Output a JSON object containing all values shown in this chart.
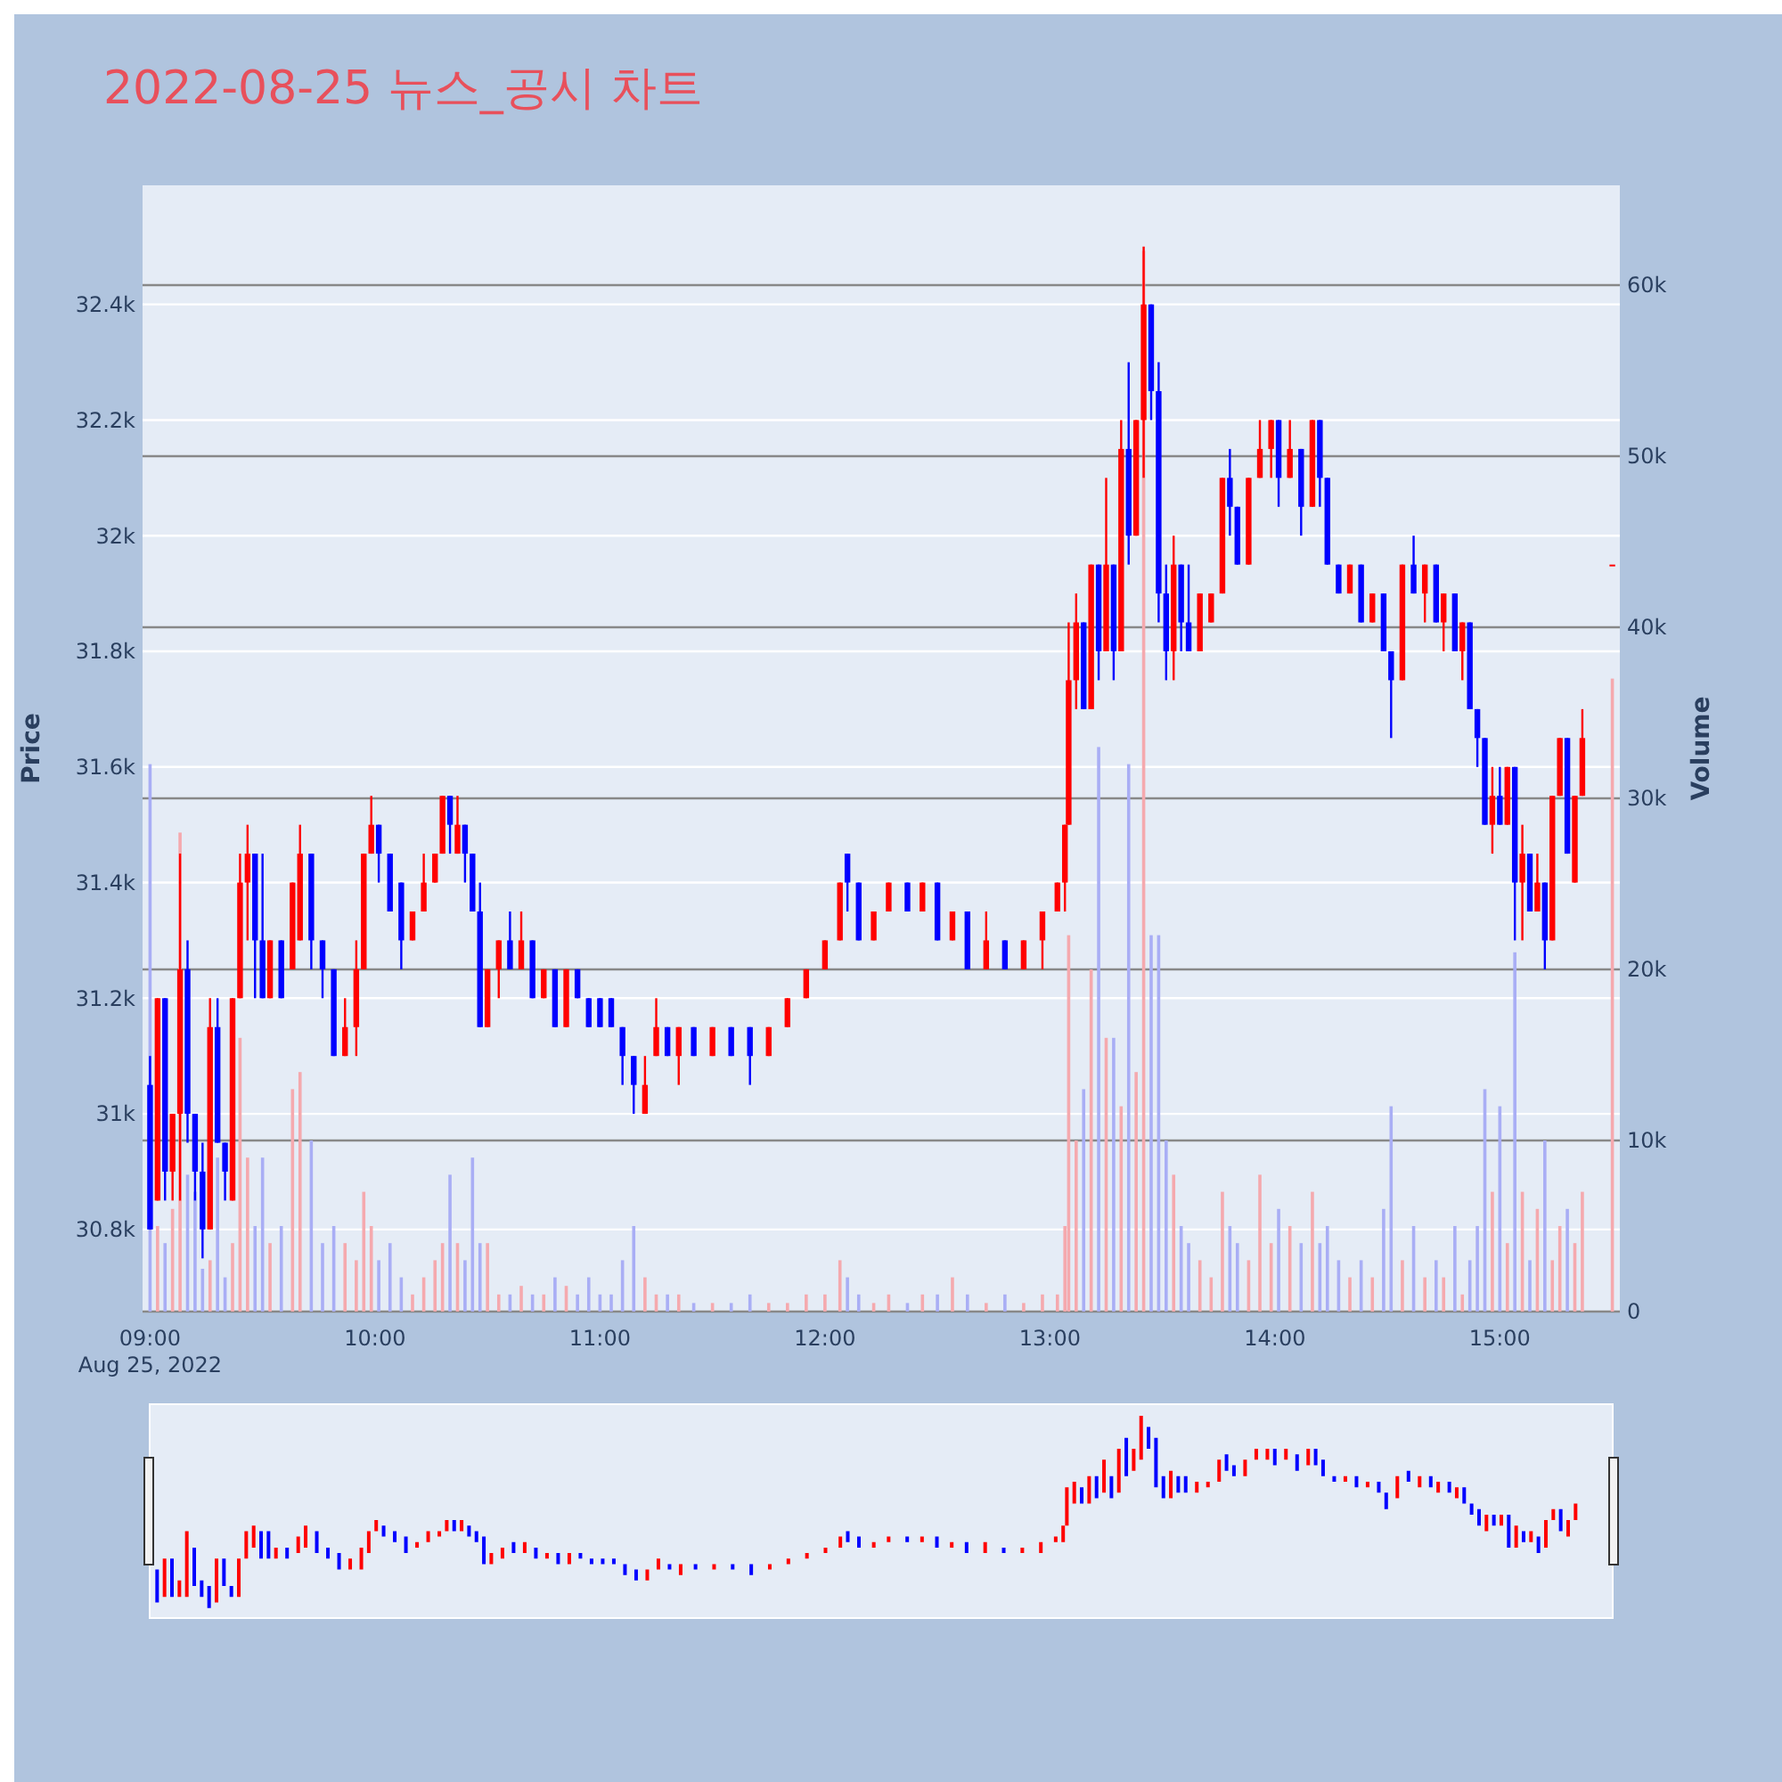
{
  "chart_data": {
    "type": "candlestick",
    "title": "2022-08-25 뉴스_공시 차트",
    "ylabel": "Price",
    "y2label": "Volume",
    "grid": "y",
    "x": [
      "2022-08-25T09:00",
      "2022-08-25T09:02",
      "2022-08-25T09:04",
      "2022-08-25T09:06",
      "2022-08-25T09:08",
      "2022-08-25T09:10",
      "2022-08-25T09:12",
      "2022-08-25T09:14",
      "2022-08-25T09:16",
      "2022-08-25T09:18",
      "2022-08-25T09:20",
      "2022-08-25T09:22",
      "2022-08-25T09:24",
      "2022-08-25T09:26",
      "2022-08-25T09:28",
      "2022-08-25T09:30",
      "2022-08-25T09:32",
      "2022-08-25T09:35",
      "2022-08-25T09:38",
      "2022-08-25T09:40",
      "2022-08-25T09:43",
      "2022-08-25T09:46",
      "2022-08-25T09:49",
      "2022-08-25T09:52",
      "2022-08-25T09:55",
      "2022-08-25T09:57",
      "2022-08-25T09:59",
      "2022-08-25T10:01",
      "2022-08-25T10:04",
      "2022-08-25T10:07",
      "2022-08-25T10:10",
      "2022-08-25T10:13",
      "2022-08-25T10:16",
      "2022-08-25T10:18",
      "2022-08-25T10:20",
      "2022-08-25T10:22",
      "2022-08-25T10:24",
      "2022-08-25T10:26",
      "2022-08-25T10:28",
      "2022-08-25T10:30",
      "2022-08-25T10:33",
      "2022-08-25T10:36",
      "2022-08-25T10:39",
      "2022-08-25T10:42",
      "2022-08-25T10:45",
      "2022-08-25T10:48",
      "2022-08-25T10:51",
      "2022-08-25T10:54",
      "2022-08-25T10:57",
      "2022-08-25T11:00",
      "2022-08-25T11:03",
      "2022-08-25T11:06",
      "2022-08-25T11:09",
      "2022-08-25T11:12",
      "2022-08-25T11:15",
      "2022-08-25T11:18",
      "2022-08-25T11:21",
      "2022-08-25T11:25",
      "2022-08-25T11:30",
      "2022-08-25T11:35",
      "2022-08-25T11:40",
      "2022-08-25T11:45",
      "2022-08-25T11:50",
      "2022-08-25T11:55",
      "2022-08-25T12:00",
      "2022-08-25T12:04",
      "2022-08-25T12:06",
      "2022-08-25T12:09",
      "2022-08-25T12:13",
      "2022-08-25T12:17",
      "2022-08-25T12:22",
      "2022-08-25T12:26",
      "2022-08-25T12:30",
      "2022-08-25T12:34",
      "2022-08-25T12:38",
      "2022-08-25T12:43",
      "2022-08-25T12:48",
      "2022-08-25T12:53",
      "2022-08-25T12:58",
      "2022-08-25T13:02",
      "2022-08-25T13:04",
      "2022-08-25T13:05",
      "2022-08-25T13:07",
      "2022-08-25T13:09",
      "2022-08-25T13:11",
      "2022-08-25T13:13",
      "2022-08-25T13:15",
      "2022-08-25T13:17",
      "2022-08-25T13:19",
      "2022-08-25T13:21",
      "2022-08-25T13:23",
      "2022-08-25T13:25",
      "2022-08-25T13:27",
      "2022-08-25T13:29",
      "2022-08-25T13:31",
      "2022-08-25T13:33",
      "2022-08-25T13:35",
      "2022-08-25T13:37",
      "2022-08-25T13:40",
      "2022-08-25T13:43",
      "2022-08-25T13:46",
      "2022-08-25T13:48",
      "2022-08-25T13:50",
      "2022-08-25T13:53",
      "2022-08-25T13:56",
      "2022-08-25T13:59",
      "2022-08-25T14:01",
      "2022-08-25T14:04",
      "2022-08-25T14:07",
      "2022-08-25T14:10",
      "2022-08-25T14:12",
      "2022-08-25T14:14",
      "2022-08-25T14:17",
      "2022-08-25T14:20",
      "2022-08-25T14:23",
      "2022-08-25T14:26",
      "2022-08-25T14:29",
      "2022-08-25T14:31",
      "2022-08-25T14:34",
      "2022-08-25T14:37",
      "2022-08-25T14:40",
      "2022-08-25T14:43",
      "2022-08-25T14:45",
      "2022-08-25T14:48",
      "2022-08-25T14:50",
      "2022-08-25T14:52",
      "2022-08-25T14:54",
      "2022-08-25T14:56",
      "2022-08-25T14:58",
      "2022-08-25T15:00",
      "2022-08-25T15:02",
      "2022-08-25T15:04",
      "2022-08-25T15:06",
      "2022-08-25T15:08",
      "2022-08-25T15:10",
      "2022-08-25T15:12",
      "2022-08-25T15:14",
      "2022-08-25T15:16",
      "2022-08-25T15:18",
      "2022-08-25T15:20",
      "2022-08-25T15:22",
      "2022-08-25T15:30"
    ],
    "ohlc": [
      [
        31050,
        31100,
        30800,
        30800
      ],
      [
        30850,
        31200,
        30850,
        31200
      ],
      [
        31200,
        31200,
        30850,
        30900
      ],
      [
        30900,
        31000,
        30850,
        31000
      ],
      [
        31000,
        31450,
        30850,
        31250
      ],
      [
        31250,
        31300,
        30950,
        31000
      ],
      [
        31000,
        31000,
        30850,
        30900
      ],
      [
        30900,
        30950,
        30750,
        30800
      ],
      [
        30800,
        31200,
        30800,
        31150
      ],
      [
        31150,
        31200,
        30950,
        30950
      ],
      [
        30950,
        30950,
        30850,
        30900
      ],
      [
        30850,
        31200,
        30850,
        31200
      ],
      [
        31200,
        31450,
        31200,
        31400
      ],
      [
        31400,
        31500,
        31300,
        31450
      ],
      [
        31450,
        31450,
        31200,
        31300
      ],
      [
        31300,
        31450,
        31200,
        31200
      ],
      [
        31200,
        31300,
        31200,
        31300
      ],
      [
        31300,
        31300,
        31200,
        31200
      ],
      [
        31250,
        31400,
        31250,
        31400
      ],
      [
        31300,
        31500,
        31300,
        31450
      ],
      [
        31450,
        31450,
        31250,
        31300
      ],
      [
        31300,
        31300,
        31200,
        31250
      ],
      [
        31250,
        31250,
        31100,
        31100
      ],
      [
        31100,
        31200,
        31100,
        31150
      ],
      [
        31150,
        31300,
        31100,
        31250
      ],
      [
        31250,
        31450,
        31250,
        31450
      ],
      [
        31450,
        31550,
        31450,
        31500
      ],
      [
        31500,
        31500,
        31400,
        31450
      ],
      [
        31450,
        31450,
        31350,
        31350
      ],
      [
        31400,
        31400,
        31250,
        31300
      ],
      [
        31300,
        31350,
        31300,
        31350
      ],
      [
        31350,
        31450,
        31350,
        31400
      ],
      [
        31400,
        31450,
        31400,
        31450
      ],
      [
        31450,
        31550,
        31450,
        31550
      ],
      [
        31550,
        31550,
        31450,
        31500
      ],
      [
        31450,
        31550,
        31450,
        31500
      ],
      [
        31500,
        31500,
        31400,
        31450
      ],
      [
        31450,
        31450,
        31350,
        31350
      ],
      [
        31350,
        31400,
        31150,
        31150
      ],
      [
        31150,
        31250,
        31150,
        31250
      ],
      [
        31250,
        31300,
        31200,
        31300
      ],
      [
        31300,
        31350,
        31250,
        31250
      ],
      [
        31250,
        31350,
        31250,
        31300
      ],
      [
        31300,
        31300,
        31200,
        31200
      ],
      [
        31200,
        31250,
        31200,
        31250
      ],
      [
        31250,
        31250,
        31150,
        31150
      ],
      [
        31150,
        31250,
        31150,
        31250
      ],
      [
        31250,
        31250,
        31200,
        31200
      ],
      [
        31200,
        31200,
        31150,
        31150
      ],
      [
        31200,
        31200,
        31150,
        31150
      ],
      [
        31200,
        31200,
        31150,
        31150
      ],
      [
        31150,
        31150,
        31050,
        31100
      ],
      [
        31100,
        31100,
        31000,
        31050
      ],
      [
        31000,
        31100,
        31000,
        31050
      ],
      [
        31100,
        31200,
        31100,
        31150
      ],
      [
        31150,
        31150,
        31100,
        31100
      ],
      [
        31100,
        31150,
        31050,
        31150
      ],
      [
        31150,
        31150,
        31100,
        31100
      ],
      [
        31100,
        31150,
        31100,
        31150
      ],
      [
        31150,
        31150,
        31100,
        31100
      ],
      [
        31150,
        31150,
        31050,
        31100
      ],
      [
        31100,
        31150,
        31100,
        31150
      ],
      [
        31150,
        31200,
        31150,
        31200
      ],
      [
        31200,
        31250,
        31200,
        31250
      ],
      [
        31250,
        31300,
        31250,
        31300
      ],
      [
        31300,
        31400,
        31300,
        31400
      ],
      [
        31450,
        31450,
        31350,
        31400
      ],
      [
        31400,
        31400,
        31300,
        31300
      ],
      [
        31300,
        31350,
        31300,
        31350
      ],
      [
        31350,
        31400,
        31350,
        31400
      ],
      [
        31400,
        31400,
        31350,
        31350
      ],
      [
        31350,
        31400,
        31350,
        31400
      ],
      [
        31400,
        31400,
        31300,
        31300
      ],
      [
        31300,
        31350,
        31300,
        31350
      ],
      [
        31350,
        31350,
        31250,
        31250
      ],
      [
        31250,
        31350,
        31250,
        31300
      ],
      [
        31300,
        31300,
        31250,
        31250
      ],
      [
        31250,
        31300,
        31250,
        31300
      ],
      [
        31300,
        31350,
        31250,
        31350
      ],
      [
        31350,
        31400,
        31350,
        31400
      ],
      [
        31400,
        31500,
        31350,
        31500
      ],
      [
        31500,
        31850,
        31500,
        31750
      ],
      [
        31750,
        31900,
        31700,
        31850
      ],
      [
        31850,
        31850,
        31700,
        31700
      ],
      [
        31700,
        31950,
        31700,
        31950
      ],
      [
        31950,
        31950,
        31750,
        31800
      ],
      [
        31800,
        32100,
        31800,
        31950
      ],
      [
        31950,
        31950,
        31750,
        31800
      ],
      [
        31800,
        32200,
        31800,
        32150
      ],
      [
        32150,
        32300,
        31950,
        32000
      ],
      [
        32000,
        32200,
        32000,
        32200
      ],
      [
        32200,
        32500,
        32100,
        32400
      ],
      [
        32400,
        32400,
        32200,
        32250
      ],
      [
        32250,
        32300,
        31850,
        31900
      ],
      [
        31900,
        31950,
        31750,
        31800
      ],
      [
        31800,
        32000,
        31750,
        31950
      ],
      [
        31950,
        31950,
        31800,
        31850
      ],
      [
        31850,
        31950,
        31800,
        31800
      ],
      [
        31800,
        31900,
        31800,
        31900
      ],
      [
        31850,
        31900,
        31850,
        31900
      ],
      [
        31900,
        32100,
        31900,
        32100
      ],
      [
        32100,
        32150,
        32000,
        32050
      ],
      [
        32050,
        32050,
        31950,
        31950
      ],
      [
        31950,
        32100,
        31950,
        32100
      ],
      [
        32100,
        32200,
        32100,
        32150
      ],
      [
        32150,
        32200,
        32100,
        32200
      ],
      [
        32200,
        32200,
        32050,
        32100
      ],
      [
        32100,
        32200,
        32100,
        32150
      ],
      [
        32150,
        32150,
        32000,
        32050
      ],
      [
        32050,
        32200,
        32050,
        32200
      ],
      [
        32200,
        32200,
        32050,
        32100
      ],
      [
        32100,
        32100,
        31950,
        31950
      ],
      [
        31950,
        31950,
        31900,
        31900
      ],
      [
        31900,
        31950,
        31900,
        31950
      ],
      [
        31950,
        31950,
        31850,
        31850
      ],
      [
        31850,
        31900,
        31850,
        31900
      ],
      [
        31900,
        31900,
        31800,
        31800
      ],
      [
        31800,
        31800,
        31650,
        31750
      ],
      [
        31750,
        31950,
        31750,
        31950
      ],
      [
        31950,
        32000,
        31900,
        31900
      ],
      [
        31900,
        31950,
        31850,
        31950
      ],
      [
        31950,
        31950,
        31850,
        31850
      ],
      [
        31850,
        31900,
        31800,
        31900
      ],
      [
        31900,
        31900,
        31800,
        31800
      ],
      [
        31800,
        31850,
        31750,
        31850
      ],
      [
        31850,
        31850,
        31700,
        31700
      ],
      [
        31700,
        31700,
        31600,
        31650
      ],
      [
        31650,
        31650,
        31500,
        31500
      ],
      [
        31500,
        31600,
        31450,
        31550
      ],
      [
        31550,
        31600,
        31500,
        31500
      ],
      [
        31500,
        31600,
        31500,
        31600
      ],
      [
        31600,
        31600,
        31300,
        31400
      ],
      [
        31400,
        31500,
        31300,
        31450
      ],
      [
        31450,
        31450,
        31350,
        31350
      ],
      [
        31350,
        31450,
        31350,
        31400
      ],
      [
        31400,
        31400,
        31250,
        31300
      ],
      [
        31300,
        31550,
        31300,
        31550
      ],
      [
        31550,
        31650,
        31550,
        31650
      ],
      [
        31650,
        31650,
        31450,
        31450
      ],
      [
        31400,
        31550,
        31400,
        31550
      ],
      [
        31550,
        31700,
        31550,
        31650
      ],
      [
        31950,
        31950,
        31950,
        31950
      ]
    ],
    "colors": [
      "#0000ff",
      "#ff0000",
      "#0000ff",
      "#ff0000",
      "#ff0000",
      "#0000ff",
      "#0000ff",
      "#0000ff",
      "#ff0000",
      "#0000ff",
      "#0000ff",
      "#ff0000",
      "#ff0000",
      "#ff0000",
      "#0000ff",
      "#0000ff",
      "#ff0000",
      "#0000ff",
      "#ff0000",
      "#ff0000",
      "#0000ff",
      "#0000ff",
      "#0000ff",
      "#ff0000",
      "#ff0000",
      "#ff0000",
      "#ff0000",
      "#0000ff",
      "#0000ff",
      "#0000ff",
      "#ff0000",
      "#ff0000",
      "#ff0000",
      "#ff0000",
      "#0000ff",
      "#ff0000",
      "#0000ff",
      "#0000ff",
      "#0000ff",
      "#ff0000",
      "#ff0000",
      "#0000ff",
      "#ff0000",
      "#0000ff",
      "#ff0000",
      "#0000ff",
      "#ff0000",
      "#0000ff",
      "#0000ff",
      "#0000ff",
      "#0000ff",
      "#0000ff",
      "#0000ff",
      "#ff0000",
      "#ff0000",
      "#0000ff",
      "#ff0000",
      "#0000ff",
      "#ff0000",
      "#0000ff",
      "#0000ff",
      "#ff0000",
      "#ff0000",
      "#ff0000",
      "#ff0000",
      "#ff0000",
      "#0000ff",
      "#0000ff",
      "#ff0000",
      "#ff0000",
      "#0000ff",
      "#ff0000",
      "#0000ff",
      "#ff0000",
      "#0000ff",
      "#ff0000",
      "#0000ff",
      "#ff0000",
      "#ff0000",
      "#ff0000",
      "#ff0000",
      "#ff0000",
      "#ff0000",
      "#0000ff",
      "#ff0000",
      "#0000ff",
      "#ff0000",
      "#0000ff",
      "#ff0000",
      "#0000ff",
      "#ff0000",
      "#ff0000",
      "#0000ff",
      "#0000ff",
      "#0000ff",
      "#ff0000",
      "#0000ff",
      "#0000ff",
      "#ff0000",
      "#ff0000",
      "#ff0000",
      "#0000ff",
      "#0000ff",
      "#ff0000",
      "#ff0000",
      "#ff0000",
      "#0000ff",
      "#ff0000",
      "#0000ff",
      "#ff0000",
      "#0000ff",
      "#0000ff",
      "#0000ff",
      "#ff0000",
      "#0000ff",
      "#ff0000",
      "#0000ff",
      "#0000ff",
      "#ff0000",
      "#0000ff",
      "#ff0000",
      "#0000ff",
      "#ff0000",
      "#0000ff",
      "#ff0000",
      "#0000ff",
      "#0000ff",
      "#0000ff",
      "#ff0000",
      "#0000ff",
      "#ff0000",
      "#0000ff",
      "#ff0000",
      "#0000ff",
      "#ff0000",
      "#0000ff",
      "#ff0000",
      "#ff0000",
      "#0000ff",
      "#ff0000",
      "#ff0000",
      "#ff0000"
    ],
    "series": [
      {
        "type": "bar",
        "axis": "y2",
        "values": [
          32000,
          5000,
          4000,
          6000,
          28000,
          8000,
          7000,
          2500,
          3000,
          9000,
          2000,
          4000,
          16000,
          9000,
          5000,
          9000,
          4000,
          5000,
          13000,
          14000,
          10000,
          4000,
          5000,
          4000,
          3000,
          7000,
          5000,
          3000,
          4000,
          2000,
          1000,
          2000,
          3000,
          4000,
          8000,
          4000,
          3000,
          9000,
          4000,
          4000,
          1000,
          1000,
          1500,
          1000,
          1000,
          2000,
          1500,
          1000,
          2000,
          1000,
          1000,
          3000,
          5000,
          2000,
          1000,
          1000,
          1000,
          500,
          500,
          500,
          1000,
          500,
          500,
          1000,
          1000,
          3000,
          2000,
          1000,
          500,
          1000,
          500,
          1000,
          1000,
          2000,
          1000,
          500,
          1000,
          500,
          1000,
          1000,
          5000,
          22000,
          10000,
          13000,
          20000,
          33000,
          16000,
          16000,
          12000,
          32000,
          14000,
          62000,
          22000,
          22000,
          10000,
          8000,
          5000,
          4000,
          3000,
          2000,
          7000,
          5000,
          4000,
          3000,
          8000,
          4000,
          6000,
          5000,
          4000,
          7000,
          4000,
          5000,
          3000,
          2000,
          3000,
          2000,
          6000,
          12000,
          3000,
          5000,
          2000,
          3000,
          2000,
          5000,
          1000,
          3000,
          5000,
          13000,
          7000,
          12000,
          4000,
          21000,
          7000,
          3000,
          6000,
          10000,
          3000,
          5000,
          6000,
          4000,
          7000,
          37000
        ],
        "colors": [
          "#a9aef5",
          "#f5a9ae",
          "#a9aef5",
          "#f5a9ae",
          "#f5a9ae",
          "#a9aef5",
          "#a9aef5",
          "#a9aef5",
          "#f5a9ae",
          "#a9aef5",
          "#a9aef5",
          "#f5a9ae",
          "#f5a9ae",
          "#f5a9ae",
          "#a9aef5",
          "#a9aef5",
          "#f5a9ae",
          "#a9aef5",
          "#f5a9ae",
          "#f5a9ae",
          "#a9aef5",
          "#a9aef5",
          "#a9aef5",
          "#f5a9ae",
          "#f5a9ae",
          "#f5a9ae",
          "#f5a9ae",
          "#a9aef5",
          "#a9aef5",
          "#a9aef5",
          "#f5a9ae",
          "#f5a9ae",
          "#f5a9ae",
          "#f5a9ae",
          "#a9aef5",
          "#f5a9ae",
          "#a9aef5",
          "#a9aef5",
          "#a9aef5",
          "#f5a9ae",
          "#f5a9ae",
          "#a9aef5",
          "#f5a9ae",
          "#a9aef5",
          "#f5a9ae",
          "#a9aef5",
          "#f5a9ae",
          "#a9aef5",
          "#a9aef5",
          "#a9aef5",
          "#a9aef5",
          "#a9aef5",
          "#a9aef5",
          "#f5a9ae",
          "#f5a9ae",
          "#a9aef5",
          "#f5a9ae",
          "#a9aef5",
          "#f5a9ae",
          "#a9aef5",
          "#a9aef5",
          "#f5a9ae",
          "#f5a9ae",
          "#f5a9ae",
          "#f5a9ae",
          "#f5a9ae",
          "#a9aef5",
          "#a9aef5",
          "#f5a9ae",
          "#f5a9ae",
          "#a9aef5",
          "#f5a9ae",
          "#a9aef5",
          "#f5a9ae",
          "#a9aef5",
          "#f5a9ae",
          "#a9aef5",
          "#f5a9ae",
          "#f5a9ae",
          "#f5a9ae",
          "#f5a9ae",
          "#f5a9ae",
          "#f5a9ae",
          "#a9aef5",
          "#f5a9ae",
          "#a9aef5",
          "#f5a9ae",
          "#a9aef5",
          "#f5a9ae",
          "#a9aef5",
          "#f5a9ae",
          "#f5a9ae",
          "#a9aef5",
          "#a9aef5",
          "#a9aef5",
          "#f5a9ae",
          "#a9aef5",
          "#a9aef5",
          "#f5a9ae",
          "#f5a9ae",
          "#f5a9ae",
          "#a9aef5",
          "#a9aef5",
          "#f5a9ae",
          "#f5a9ae",
          "#f5a9ae",
          "#a9aef5",
          "#f5a9ae",
          "#a9aef5",
          "#f5a9ae",
          "#a9aef5",
          "#a9aef5",
          "#a9aef5",
          "#f5a9ae",
          "#a9aef5",
          "#f5a9ae",
          "#a9aef5",
          "#a9aef5",
          "#f5a9ae",
          "#a9aef5",
          "#f5a9ae",
          "#a9aef5",
          "#f5a9ae",
          "#a9aef5",
          "#f5a9ae",
          "#a9aef5",
          "#a9aef5",
          "#a9aef5",
          "#f5a9ae",
          "#a9aef5",
          "#f5a9ae",
          "#a9aef5",
          "#f5a9ae",
          "#a9aef5",
          "#f5a9ae",
          "#a9aef5",
          "#f5a9ae",
          "#f5a9ae",
          "#a9aef5",
          "#f5a9ae",
          "#f5a9ae",
          "#f5a9ae"
        ]
      }
    ],
    "xlim": [
      "2022-08-25T08:58",
      "2022-08-25T15:32"
    ],
    "xticks": [
      {
        "value": "2022-08-25T09:00",
        "label": "09:00\nAug 25, 2022"
      },
      {
        "value": "2022-08-25T10:00",
        "label": "10:00"
      },
      {
        "value": "2022-08-25T11:00",
        "label": "11:00"
      },
      {
        "value": "2022-08-25T12:00",
        "label": "12:00"
      },
      {
        "value": "2022-08-25T13:00",
        "label": "13:00"
      },
      {
        "value": "2022-08-25T14:00",
        "label": "14:00"
      },
      {
        "value": "2022-08-25T15:00",
        "label": "15:00"
      }
    ],
    "ylim": [
      30658,
      32606
    ],
    "yticks": [
      {
        "value": 30800,
        "label": "30.8k"
      },
      {
        "value": 31000,
        "label": "31k"
      },
      {
        "value": 31200,
        "label": "31.2k"
      },
      {
        "value": 31400,
        "label": "31.4k"
      },
      {
        "value": 31600,
        "label": "31.6k"
      },
      {
        "value": 31800,
        "label": "31.8k"
      },
      {
        "value": 32000,
        "label": "32k"
      },
      {
        "value": 32200,
        "label": "32.2k"
      },
      {
        "value": 32400,
        "label": "32.4k"
      }
    ],
    "y2lim": [
      0,
      65833
    ],
    "y2ticks": [
      0,
      {
        "value": 10000,
        "label": "10k"
      },
      {
        "value": 20000,
        "label": "20k"
      },
      {
        "value": 30000,
        "label": "30k"
      },
      {
        "value": 40000,
        "label": "40k"
      },
      {
        "value": 50000,
        "label": "50k"
      },
      {
        "value": 60000,
        "label": "60k"
      }
    ]
  }
}
